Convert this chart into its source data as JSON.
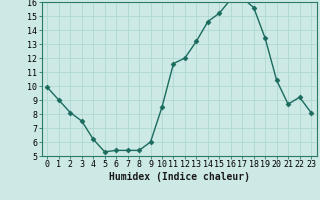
{
  "x": [
    0,
    1,
    2,
    3,
    4,
    5,
    6,
    7,
    8,
    9,
    10,
    11,
    12,
    13,
    14,
    15,
    16,
    17,
    18,
    19,
    20,
    21,
    22,
    23
  ],
  "y": [
    9.9,
    9.0,
    8.1,
    7.5,
    6.2,
    5.3,
    5.4,
    5.4,
    5.4,
    6.0,
    8.5,
    11.6,
    12.0,
    13.2,
    14.6,
    15.2,
    16.2,
    16.3,
    15.6,
    13.4,
    10.4,
    8.7,
    9.2,
    8.1
  ],
  "xlabel": "Humidex (Indice chaleur)",
  "ylim": [
    5,
    16
  ],
  "xlim": [
    -0.5,
    23.5
  ],
  "yticks": [
    5,
    6,
    7,
    8,
    9,
    10,
    11,
    12,
    13,
    14,
    15,
    16
  ],
  "xticks": [
    0,
    1,
    2,
    3,
    4,
    5,
    6,
    7,
    8,
    9,
    10,
    11,
    12,
    13,
    14,
    15,
    16,
    17,
    18,
    19,
    20,
    21,
    22,
    23
  ],
  "xtick_labels": [
    "0",
    "1",
    "2",
    "3",
    "4",
    "5",
    "6",
    "7",
    "8",
    "9",
    "10",
    "11",
    "12",
    "13",
    "14",
    "15",
    "16",
    "17",
    "18",
    "19",
    "20",
    "21",
    "22",
    "23"
  ],
  "line_color": "#1a6b5e",
  "marker": "D",
  "marker_size": 2.5,
  "bg_color": "#cce9e5",
  "grid_color": "#b0d8d4",
  "axes_bg": "#cce9e5",
  "tick_fontsize": 6,
  "xlabel_fontsize": 7,
  "ylabel_fontsize": 6
}
